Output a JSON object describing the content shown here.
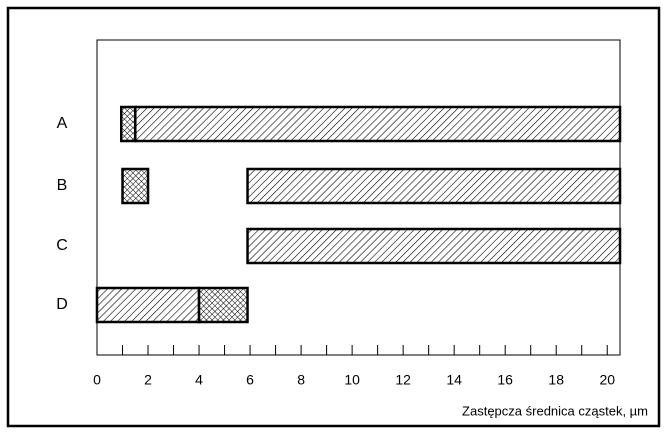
{
  "chart_data": {
    "type": "floating-bar",
    "categories": [
      "A",
      "B",
      "C",
      "D"
    ],
    "segments": [
      {
        "category": "A",
        "pattern": "crosshatch",
        "start": 0.95,
        "end": 1.5
      },
      {
        "category": "A",
        "pattern": "diagonal",
        "start": 1.5,
        "end": 20.5
      },
      {
        "category": "B",
        "pattern": "crosshatch",
        "start": 1,
        "end": 2
      },
      {
        "category": "B",
        "pattern": "diagonal",
        "start": 5.9,
        "end": 20.5
      },
      {
        "category": "C",
        "pattern": "diagonal",
        "start": 5.9,
        "end": 20.5
      },
      {
        "category": "D",
        "pattern": "diagonal",
        "start": 0,
        "end": 4
      },
      {
        "category": "D",
        "pattern": "crosshatch",
        "start": 4,
        "end": 5.9
      }
    ],
    "xlabel": "Zastępcza średnica cząstek, µm",
    "xlim": [
      0,
      20.5
    ],
    "xticks": [
      0,
      2,
      4,
      6,
      8,
      10,
      12,
      14,
      16,
      18,
      20
    ],
    "xminor_ticks": [
      1,
      3,
      5,
      7,
      9,
      11,
      13,
      15,
      17,
      19
    ]
  }
}
